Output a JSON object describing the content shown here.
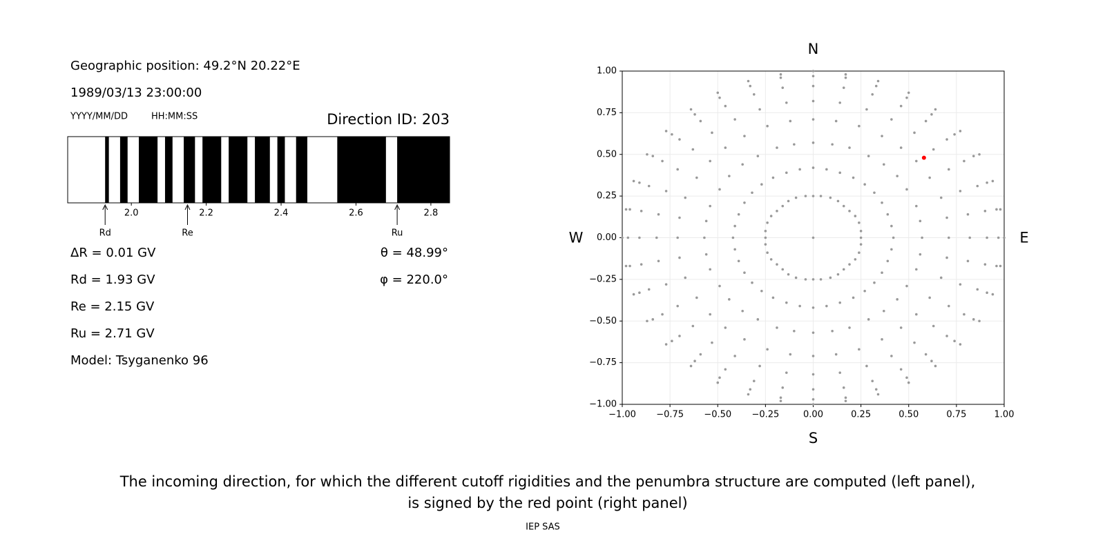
{
  "panel": {
    "position": "Geographic position: 49.2°N 20.22°E",
    "datetime": "1989/03/13 23:00:00",
    "date_format": "YYYY/MM/DD",
    "time_format": "HH:MM:SS",
    "direction": "Direction ID: 203",
    "lines": [
      "ΔR = 0.01 GV",
      "Rd = 1.93 GV",
      "Re = 2.15 GV",
      "Ru = 2.71 GV",
      "Model: Tsyganenko 96"
    ],
    "angles": [
      "θ = 48.99°",
      "φ = 220.0°"
    ]
  },
  "chart_data": [
    {
      "type": "penumbra",
      "xlim": [
        1.83,
        2.85
      ],
      "xticks": [
        {
          "value": 2,
          "label": "2.0"
        },
        2.2,
        2.4,
        2.6,
        2.8
      ],
      "bands": [
        [
          1.93,
          1.94
        ],
        [
          1.97,
          1.99
        ],
        [
          2.02,
          2.07
        ],
        [
          2.09,
          2.11
        ],
        [
          2.14,
          2.17
        ],
        [
          2.19,
          2.24
        ],
        [
          2.26,
          2.31
        ],
        [
          2.33,
          2.37
        ],
        [
          2.39,
          2.41
        ],
        [
          2.44,
          2.47
        ],
        [
          2.55,
          2.68
        ],
        [
          2.71,
          2.85
        ]
      ],
      "band_color": "#000000",
      "markers": [
        {
          "label": "Rd",
          "value": 1.93
        },
        {
          "label": "Re",
          "value": 2.15
        },
        {
          "label": "Ru",
          "value": 2.71
        }
      ]
    },
    {
      "type": "scatter",
      "xlim": [
        -1,
        1
      ],
      "ylim": [
        -1,
        1
      ],
      "grid": true,
      "xticks": [
        {
          "value": -1,
          "label": "−1.00"
        },
        {
          "value": -0.75,
          "label": "−0.75"
        },
        {
          "value": -0.5,
          "label": "−0.50"
        },
        {
          "value": -0.25,
          "label": "−0.25"
        },
        {
          "value": 0,
          "label": "0.00"
        },
        {
          "value": 0.25,
          "label": "0.25"
        },
        {
          "value": 0.5,
          "label": "0.50"
        },
        {
          "value": 0.75,
          "label": "0.75"
        },
        {
          "value": 1,
          "label": "1.00"
        }
      ],
      "yticks": [
        {
          "value": -1,
          "label": "−1.00"
        },
        {
          "value": -0.75,
          "label": "−0.75"
        },
        {
          "value": -0.5,
          "label": "−0.50"
        },
        {
          "value": -0.25,
          "label": "−0.25"
        },
        {
          "value": 0,
          "label": "0.00"
        },
        {
          "value": 0.25,
          "label": "0.25"
        },
        {
          "value": 0.5,
          "label": "0.50"
        },
        {
          "value": 0.75,
          "label": "0.75"
        },
        {
          "value": 1,
          "label": "1.00"
        }
      ],
      "compass": {
        "north": "N",
        "south": "S",
        "west": "W",
        "east": "E"
      },
      "series": [
        {
          "color": "#999999",
          "x": [
            0.25,
            0.42,
            0.57,
            0.71,
            0.82,
            0.91,
            0.97,
            1,
            0.25,
            0.41,
            0.56,
            0.7,
            0.81,
            0.9,
            0.96,
            0.98,
            0.24,
            0.39,
            0.54,
            0.67,
            0.77,
            0.86,
            0.91,
            0.94,
            0.22,
            0.36,
            0.49,
            0.61,
            0.71,
            0.79,
            0.84,
            0.87,
            0.19,
            0.32,
            0.44,
            0.54,
            0.63,
            0.7,
            0.74,
            0.77,
            0.16,
            0.27,
            0.37,
            0.46,
            0.53,
            0.59,
            0.62,
            0.64,
            0.13,
            0.21,
            0.29,
            0.36,
            0.41,
            0.46,
            0.49,
            0.5,
            0.09,
            0.14,
            0.19,
            0.24,
            0.28,
            0.31,
            0.33,
            0.34,
            0.04,
            0.07,
            0.1,
            0.12,
            0.14,
            0.16,
            0.17,
            0.17,
            0,
            0,
            0,
            0,
            0,
            0,
            0,
            0,
            -0.04,
            -0.07,
            -0.1,
            -0.12,
            -0.14,
            -0.16,
            -0.17,
            -0.17,
            -0.09,
            -0.14,
            -0.19,
            -0.24,
            -0.28,
            -0.31,
            -0.33,
            -0.34,
            -0.13,
            -0.21,
            -0.29,
            -0.36,
            -0.41,
            -0.46,
            -0.49,
            -0.5,
            -0.16,
            -0.27,
            -0.37,
            -0.46,
            -0.53,
            -0.59,
            -0.62,
            -0.64,
            -0.19,
            -0.32,
            -0.44,
            -0.54,
            -0.63,
            -0.7,
            -0.74,
            -0.77,
            -0.22,
            -0.36,
            -0.49,
            -0.61,
            -0.71,
            -0.79,
            -0.84,
            -0.87,
            -0.24,
            -0.39,
            -0.54,
            -0.67,
            -0.77,
            -0.86,
            -0.91,
            -0.94,
            -0.25,
            -0.41,
            -0.56,
            -0.7,
            -0.81,
            -0.9,
            -0.96,
            -0.98,
            -0.25,
            -0.42,
            -0.57,
            -0.71,
            -0.82,
            -0.91,
            -0.97,
            -1,
            -0.25,
            -0.41,
            -0.56,
            -0.7,
            -0.81,
            -0.9,
            -0.96,
            -0.98,
            -0.24,
            -0.39,
            -0.54,
            -0.67,
            -0.77,
            -0.86,
            -0.91,
            -0.94,
            -0.22,
            -0.36,
            -0.49,
            -0.61,
            -0.71,
            -0.79,
            -0.84,
            -0.87,
            -0.19,
            -0.32,
            -0.44,
            -0.54,
            -0.63,
            -0.7,
            -0.74,
            -0.77,
            -0.16,
            -0.27,
            -0.37,
            -0.46,
            -0.53,
            -0.59,
            -0.62,
            -0.64,
            -0.13,
            -0.21,
            -0.29,
            -0.36,
            -0.41,
            -0.46,
            -0.49,
            -0.5,
            -0.09,
            -0.14,
            -0.19,
            -0.24,
            -0.28,
            -0.31,
            -0.33,
            -0.34,
            -0.04,
            -0.07,
            -0.1,
            -0.12,
            -0.14,
            -0.16,
            -0.17,
            -0.17,
            0,
            0,
            0,
            0,
            0,
            0,
            0,
            0,
            0.04,
            0.07,
            0.1,
            0.12,
            0.14,
            0.16,
            0.17,
            0.17,
            0.09,
            0.14,
            0.19,
            0.24,
            0.28,
            0.31,
            0.33,
            0.34,
            0.13,
            0.21,
            0.29,
            0.36,
            0.41,
            0.46,
            0.49,
            0.5,
            0.16,
            0.27,
            0.37,
            0.46,
            0.53,
            0.59,
            0.62,
            0.64,
            0.19,
            0.32,
            0.44,
            0.54,
            0.63,
            0.7,
            0.74,
            0.77,
            0.22,
            0.36,
            0.49,
            0.61,
            0.71,
            0.79,
            0.84,
            0.87,
            0.24,
            0.39,
            0.54,
            0.67,
            0.77,
            0.86,
            0.91,
            0.94,
            0.25,
            0.41,
            0.56,
            0.7,
            0.81,
            0.9,
            0.96,
            0.98,
            0
          ],
          "y": [
            0,
            0,
            0,
            0,
            0,
            0,
            0,
            0,
            0.04,
            0.07,
            0.1,
            0.12,
            0.14,
            0.16,
            0.17,
            0.17,
            0.09,
            0.14,
            0.19,
            0.24,
            0.28,
            0.31,
            0.33,
            0.34,
            0.13,
            0.21,
            0.29,
            0.36,
            0.41,
            0.46,
            0.49,
            0.5,
            0.16,
            0.27,
            0.37,
            0.46,
            0.53,
            0.59,
            0.62,
            0.64,
            0.19,
            0.32,
            0.44,
            0.54,
            0.63,
            0.7,
            0.74,
            0.77,
            0.22,
            0.36,
            0.49,
            0.61,
            0.71,
            0.79,
            0.84,
            0.87,
            0.24,
            0.39,
            0.54,
            0.67,
            0.77,
            0.86,
            0.91,
            0.94,
            0.25,
            0.41,
            0.56,
            0.7,
            0.81,
            0.9,
            0.96,
            0.98,
            0.25,
            0.42,
            0.57,
            0.71,
            0.82,
            0.91,
            0.97,
            1,
            0.25,
            0.41,
            0.56,
            0.7,
            0.81,
            0.9,
            0.96,
            0.98,
            0.24,
            0.39,
            0.54,
            0.67,
            0.77,
            0.86,
            0.91,
            0.94,
            0.22,
            0.36,
            0.49,
            0.61,
            0.71,
            0.79,
            0.84,
            0.87,
            0.19,
            0.32,
            0.44,
            0.54,
            0.63,
            0.7,
            0.74,
            0.77,
            0.16,
            0.27,
            0.37,
            0.46,
            0.53,
            0.59,
            0.62,
            0.64,
            0.13,
            0.21,
            0.29,
            0.36,
            0.41,
            0.46,
            0.49,
            0.5,
            0.09,
            0.14,
            0.19,
            0.24,
            0.28,
            0.31,
            0.33,
            0.34,
            0.04,
            0.07,
            0.1,
            0.12,
            0.14,
            0.16,
            0.17,
            0.17,
            0,
            0,
            0,
            0,
            0,
            0,
            0,
            0,
            -0.04,
            -0.07,
            -0.1,
            -0.12,
            -0.14,
            -0.16,
            -0.17,
            -0.17,
            -0.09,
            -0.14,
            -0.19,
            -0.24,
            -0.28,
            -0.31,
            -0.33,
            -0.34,
            -0.13,
            -0.21,
            -0.29,
            -0.36,
            -0.41,
            -0.46,
            -0.49,
            -0.5,
            -0.16,
            -0.27,
            -0.37,
            -0.46,
            -0.53,
            -0.59,
            -0.62,
            -0.64,
            -0.19,
            -0.32,
            -0.44,
            -0.54,
            -0.63,
            -0.7,
            -0.74,
            -0.77,
            -0.22,
            -0.36,
            -0.49,
            -0.61,
            -0.71,
            -0.79,
            -0.84,
            -0.87,
            -0.24,
            -0.39,
            -0.54,
            -0.67,
            -0.77,
            -0.86,
            -0.91,
            -0.94,
            -0.25,
            -0.41,
            -0.56,
            -0.7,
            -0.81,
            -0.9,
            -0.96,
            -0.98,
            -0.25,
            -0.42,
            -0.57,
            -0.71,
            -0.82,
            -0.91,
            -0.97,
            -1,
            -0.25,
            -0.41,
            -0.56,
            -0.7,
            -0.81,
            -0.9,
            -0.96,
            -0.98,
            -0.24,
            -0.39,
            -0.54,
            -0.67,
            -0.77,
            -0.86,
            -0.91,
            -0.94,
            -0.22,
            -0.36,
            -0.49,
            -0.61,
            -0.71,
            -0.79,
            -0.84,
            -0.87,
            -0.19,
            -0.32,
            -0.44,
            -0.54,
            -0.63,
            -0.7,
            -0.74,
            -0.77,
            -0.16,
            -0.27,
            -0.37,
            -0.46,
            -0.53,
            -0.59,
            -0.62,
            -0.64,
            -0.13,
            -0.21,
            -0.29,
            -0.36,
            -0.41,
            -0.46,
            -0.49,
            -0.5,
            -0.09,
            -0.14,
            -0.19,
            -0.24,
            -0.28,
            -0.31,
            -0.33,
            -0.34,
            -0.04,
            -0.07,
            -0.1,
            -0.12,
            -0.14,
            -0.16,
            -0.17,
            -0.17,
            0
          ]
        },
        {
          "color": "#ff0000",
          "x": [
            0.58
          ],
          "y": [
            0.48
          ]
        }
      ]
    }
  ],
  "caption": [
    "The incoming direction, for which the different cutoff rigidities and the penumbra structure are computed (left panel),",
    "is signed by the red point (right panel)"
  ],
  "footer": "IEP SAS"
}
